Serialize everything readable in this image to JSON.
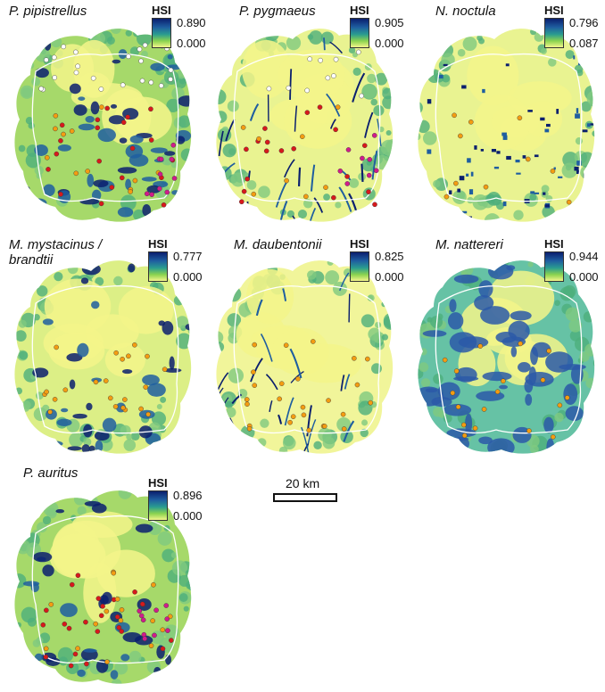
{
  "legend_title": "HSI",
  "scalebar_label": "20 km",
  "colors": {
    "high": "#0a1f6e",
    "mid": "#2a9d8f",
    "low": "#f3f58a",
    "boundary": "#ffffff",
    "point_red": "#d7191c",
    "point_orange": "#f39c12",
    "point_magenta": "#d01c8b",
    "point_white": "#ffffff"
  },
  "panels": [
    {
      "species_lines": [
        "P. pipistrellus"
      ],
      "hsi_max": "0.890",
      "hsi_min": "0.000"
    },
    {
      "species_lines": [
        "P. pygmaeus"
      ],
      "hsi_max": "0.905",
      "hsi_min": "0.000"
    },
    {
      "species_lines": [
        "N. noctula"
      ],
      "hsi_max": "0.796",
      "hsi_min": "0.087"
    },
    {
      "species_lines": [
        "M. mystacinus /",
        "brandtii"
      ],
      "hsi_max": "0.777",
      "hsi_min": "0.000"
    },
    {
      "species_lines": [
        "M. daubentonii"
      ],
      "hsi_max": "0.825",
      "hsi_min": "0.000"
    },
    {
      "species_lines": [
        "M. nattereri"
      ],
      "hsi_max": "0.944",
      "hsi_min": "0.000"
    },
    {
      "species_lines": [
        "P. auritus"
      ],
      "hsi_max": "0.896",
      "hsi_min": "0.000"
    }
  ]
}
